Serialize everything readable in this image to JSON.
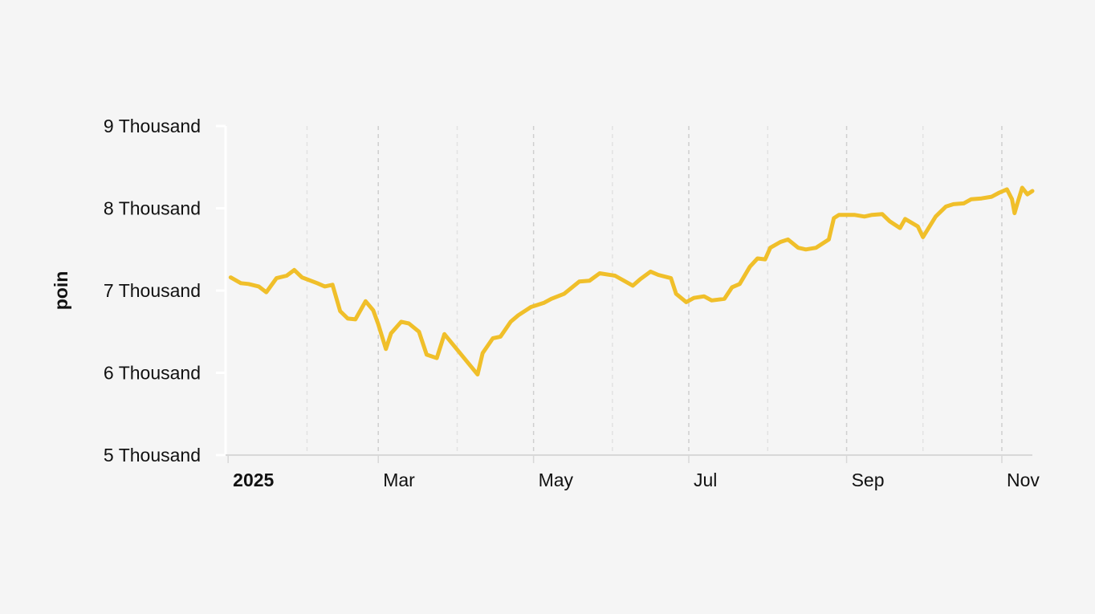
{
  "chart_data": {
    "type": "line",
    "title": "",
    "xlabel": "",
    "ylabel": "poin",
    "ylim": [
      5000,
      9000
    ],
    "xlim": [
      "2024-12-31",
      "2025-11-13"
    ],
    "y_ticks": [
      {
        "value": 5000,
        "label": "5 Thousand"
      },
      {
        "value": 6000,
        "label": "6 Thousand"
      },
      {
        "value": 7000,
        "label": "7 Thousand"
      },
      {
        "value": 8000,
        "label": "8 Thousand"
      },
      {
        "value": 9000,
        "label": "9 Thousand"
      }
    ],
    "x_ticks": [
      {
        "date": "2025-01-01",
        "label": "2025",
        "bold": true
      },
      {
        "date": "2025-03-01",
        "label": "Mar"
      },
      {
        "date": "2025-05-01",
        "label": "May"
      },
      {
        "date": "2025-07-01",
        "label": "Jul"
      },
      {
        "date": "2025-09-01",
        "label": "Sep"
      },
      {
        "date": "2025-11-01",
        "label": "Nov"
      }
    ],
    "minor_gridlines": [
      "2025-02-01",
      "2025-04-01",
      "2025-06-01",
      "2025-08-01",
      "2025-10-01"
    ],
    "grid": true,
    "line_color": "#f0bf2a",
    "series": [
      {
        "color": "#f0bf2a",
        "points": [
          [
            "2025-01-02",
            7160
          ],
          [
            "2025-01-06",
            7090
          ],
          [
            "2025-01-09",
            7080
          ],
          [
            "2025-01-13",
            7050
          ],
          [
            "2025-01-16",
            6980
          ],
          [
            "2025-01-20",
            7150
          ],
          [
            "2025-01-24",
            7180
          ],
          [
            "2025-01-27",
            7250
          ],
          [
            "2025-01-30",
            7160
          ],
          [
            "2025-02-05",
            7090
          ],
          [
            "2025-02-08",
            7050
          ],
          [
            "2025-02-11",
            7070
          ],
          [
            "2025-02-14",
            6750
          ],
          [
            "2025-02-17",
            6660
          ],
          [
            "2025-02-20",
            6650
          ],
          [
            "2025-02-24",
            6870
          ],
          [
            "2025-02-27",
            6760
          ],
          [
            "2025-03-01",
            6590
          ],
          [
            "2025-03-04",
            6290
          ],
          [
            "2025-03-06",
            6480
          ],
          [
            "2025-03-10",
            6620
          ],
          [
            "2025-03-13",
            6600
          ],
          [
            "2025-03-17",
            6500
          ],
          [
            "2025-03-20",
            6220
          ],
          [
            "2025-03-24",
            6180
          ],
          [
            "2025-03-27",
            6470
          ],
          [
            "2025-04-09",
            5980
          ],
          [
            "2025-04-11",
            6240
          ],
          [
            "2025-04-15",
            6420
          ],
          [
            "2025-04-18",
            6440
          ],
          [
            "2025-04-22",
            6620
          ],
          [
            "2025-04-25",
            6700
          ],
          [
            "2025-04-30",
            6800
          ],
          [
            "2025-05-05",
            6850
          ],
          [
            "2025-05-08",
            6900
          ],
          [
            "2025-05-13",
            6960
          ],
          [
            "2025-05-19",
            7110
          ],
          [
            "2025-05-23",
            7120
          ],
          [
            "2025-05-27",
            7210
          ],
          [
            "2025-06-02",
            7180
          ],
          [
            "2025-06-09",
            7060
          ],
          [
            "2025-06-12",
            7140
          ],
          [
            "2025-06-16",
            7230
          ],
          [
            "2025-06-19",
            7190
          ],
          [
            "2025-06-24",
            7150
          ],
          [
            "2025-06-26",
            6960
          ],
          [
            "2025-06-30",
            6860
          ],
          [
            "2025-07-03",
            6910
          ],
          [
            "2025-07-07",
            6930
          ],
          [
            "2025-07-10",
            6880
          ],
          [
            "2025-07-15",
            6900
          ],
          [
            "2025-07-18",
            7040
          ],
          [
            "2025-07-21",
            7080
          ],
          [
            "2025-07-25",
            7290
          ],
          [
            "2025-07-28",
            7390
          ],
          [
            "2025-07-31",
            7380
          ],
          [
            "2025-08-02",
            7520
          ],
          [
            "2025-08-06",
            7590
          ],
          [
            "2025-08-09",
            7620
          ],
          [
            "2025-08-13",
            7520
          ],
          [
            "2025-08-16",
            7500
          ],
          [
            "2025-08-20",
            7520
          ],
          [
            "2025-08-25",
            7620
          ],
          [
            "2025-08-27",
            7880
          ],
          [
            "2025-08-29",
            7920
          ],
          [
            "2025-09-04",
            7920
          ],
          [
            "2025-09-08",
            7900
          ],
          [
            "2025-09-11",
            7920
          ],
          [
            "2025-09-15",
            7930
          ],
          [
            "2025-09-18",
            7840
          ],
          [
            "2025-09-22",
            7760
          ],
          [
            "2025-09-24",
            7870
          ],
          [
            "2025-09-29",
            7780
          ],
          [
            "2025-10-01",
            7650
          ],
          [
            "2025-10-06",
            7900
          ],
          [
            "2025-10-10",
            8020
          ],
          [
            "2025-10-13",
            8050
          ],
          [
            "2025-10-17",
            8060
          ],
          [
            "2025-10-20",
            8110
          ],
          [
            "2025-10-24",
            8120
          ],
          [
            "2025-10-28",
            8140
          ],
          [
            "2025-10-31",
            8190
          ],
          [
            "2025-11-03",
            8230
          ],
          [
            "2025-11-05",
            8110
          ],
          [
            "2025-11-06",
            7940
          ],
          [
            "2025-11-07",
            8050
          ],
          [
            "2025-11-09",
            8250
          ],
          [
            "2025-11-11",
            8170
          ],
          [
            "2025-11-13",
            8210
          ]
        ]
      }
    ]
  }
}
